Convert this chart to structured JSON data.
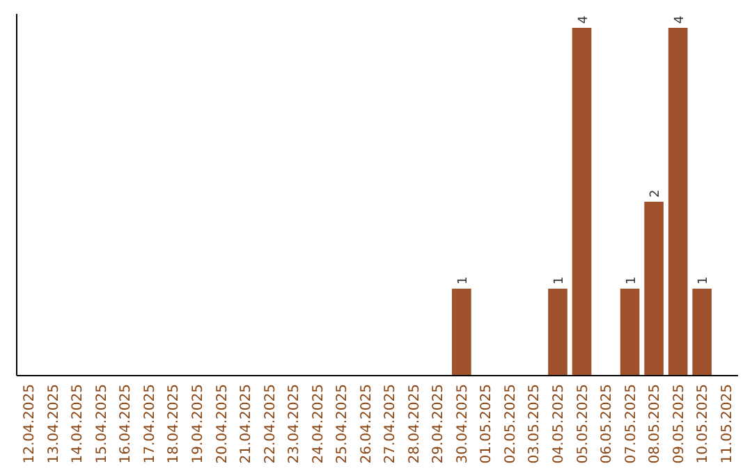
{
  "chart_data": {
    "type": "bar",
    "categories": [
      "12.04.2025",
      "13.04.2025",
      "14.04.2025",
      "15.04.2025",
      "16.04.2025",
      "17.04.2025",
      "18.04.2025",
      "19.04.2025",
      "20.04.2025",
      "21.04.2025",
      "22.04.2025",
      "23.04.2025",
      "24.04.2025",
      "25.04.2025",
      "26.04.2025",
      "27.04.2025",
      "28.04.2025",
      "29.04.2025",
      "30.04.2025",
      "01.05.2025",
      "02.05.2025",
      "03.05.2025",
      "04.05.2025",
      "05.05.2025",
      "06.05.2025",
      "07.05.2025",
      "08.05.2025",
      "09.05.2025",
      "10.05.2025",
      "11.05.2025"
    ],
    "values": [
      null,
      null,
      null,
      null,
      null,
      null,
      null,
      null,
      null,
      null,
      null,
      null,
      null,
      null,
      null,
      null,
      null,
      null,
      1,
      null,
      null,
      null,
      1,
      4,
      null,
      1,
      2,
      4,
      1,
      null
    ],
    "data_labels": true,
    "color": "#a0522d"
  }
}
